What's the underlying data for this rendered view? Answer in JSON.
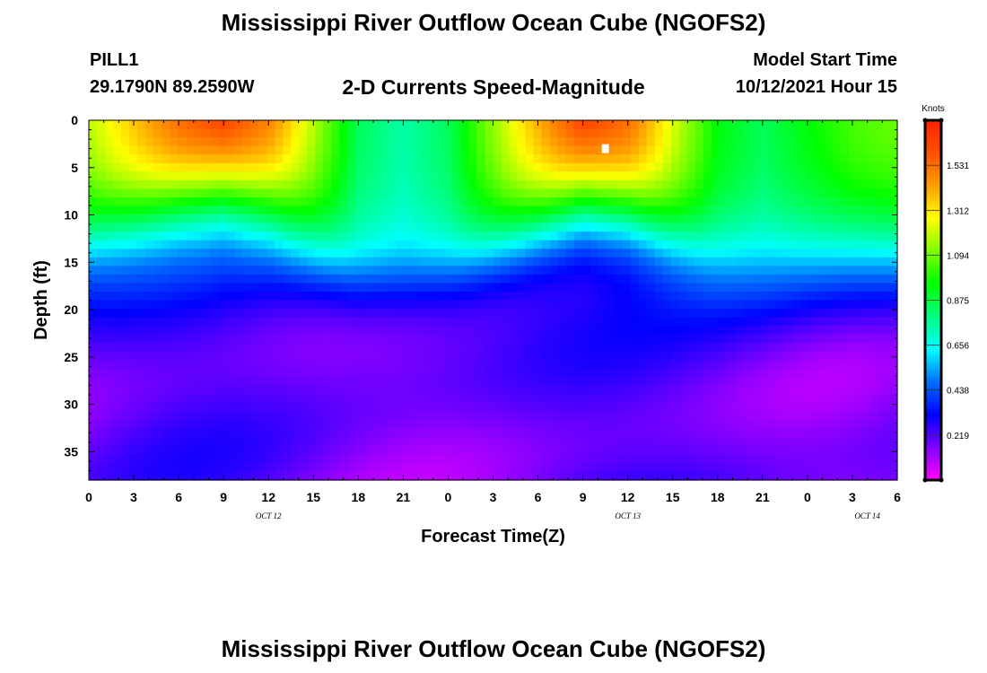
{
  "title": "Mississippi River Outflow Ocean Cube (NGOFS2)",
  "footer_title": "Mississippi River Outflow Ocean Cube (NGOFS2)",
  "station": {
    "name": "PILL1",
    "coordinates": "29.1790N  89.2590W"
  },
  "plot_title": "2-D Currents Speed-Magnitude",
  "model": {
    "label": "Model Start Time",
    "time": "10/12/2021 Hour 15"
  },
  "chart_data": {
    "type": "heatmap",
    "xlabel": "Forecast Time(Z)",
    "ylabel": "Depth (ft)",
    "x_ticks": [
      "0",
      "3",
      "6",
      "9",
      "12",
      "15",
      "18",
      "21",
      "0",
      "3",
      "6",
      "9",
      "12",
      "15",
      "18",
      "21",
      "0",
      "3",
      "6"
    ],
    "x_range_hours": [
      0,
      54
    ],
    "date_labels": [
      {
        "text": "OCT 12",
        "hour": 12
      },
      {
        "text": "OCT 13",
        "hour": 36
      },
      {
        "text": "OCT 14",
        "hour": 52
      }
    ],
    "y_ticks": [
      0,
      5,
      10,
      15,
      20,
      25,
      30,
      35
    ],
    "ylim": [
      0,
      38
    ],
    "y_inverted": true,
    "colorbar": {
      "unit": "Knots",
      "ticks": [
        "1.531",
        "1.312",
        "1.094",
        "0.875",
        "0.656",
        "0.438",
        "0.219"
      ],
      "tick_values": [
        1.531,
        1.312,
        1.094,
        0.875,
        0.656,
        0.438,
        0.219
      ],
      "range": [
        0,
        1.75
      ],
      "colors": [
        "#ff00ff",
        "#8000ff",
        "#0000ff",
        "#0070ff",
        "#00ffff",
        "#00ff80",
        "#00ff00",
        "#80ff00",
        "#ffff00",
        "#ffa000",
        "#ff5000",
        "#ff2000"
      ]
    },
    "surface_speed_knots": [
      [
        0,
        1.2
      ],
      [
        3,
        1.4
      ],
      [
        6,
        1.6
      ],
      [
        9,
        1.72
      ],
      [
        12,
        1.55
      ],
      [
        15,
        1.2
      ],
      [
        18,
        0.85
      ],
      [
        21,
        0.75
      ],
      [
        24,
        0.85
      ],
      [
        27,
        1.15
      ],
      [
        30,
        1.45
      ],
      [
        33,
        1.73
      ],
      [
        36,
        1.6
      ],
      [
        39,
        1.25
      ],
      [
        42,
        0.95
      ],
      [
        45,
        0.85
      ],
      [
        48,
        0.95
      ],
      [
        51,
        1.05
      ],
      [
        54,
        1.1
      ]
    ],
    "max_marker": {
      "hour": 34.5,
      "depth_ft": 3
    },
    "notes": "Speed decreases with depth; high-speed core near surface around hour 9 and hour 33, slow (purple/magenta) water below ~20 ft."
  }
}
